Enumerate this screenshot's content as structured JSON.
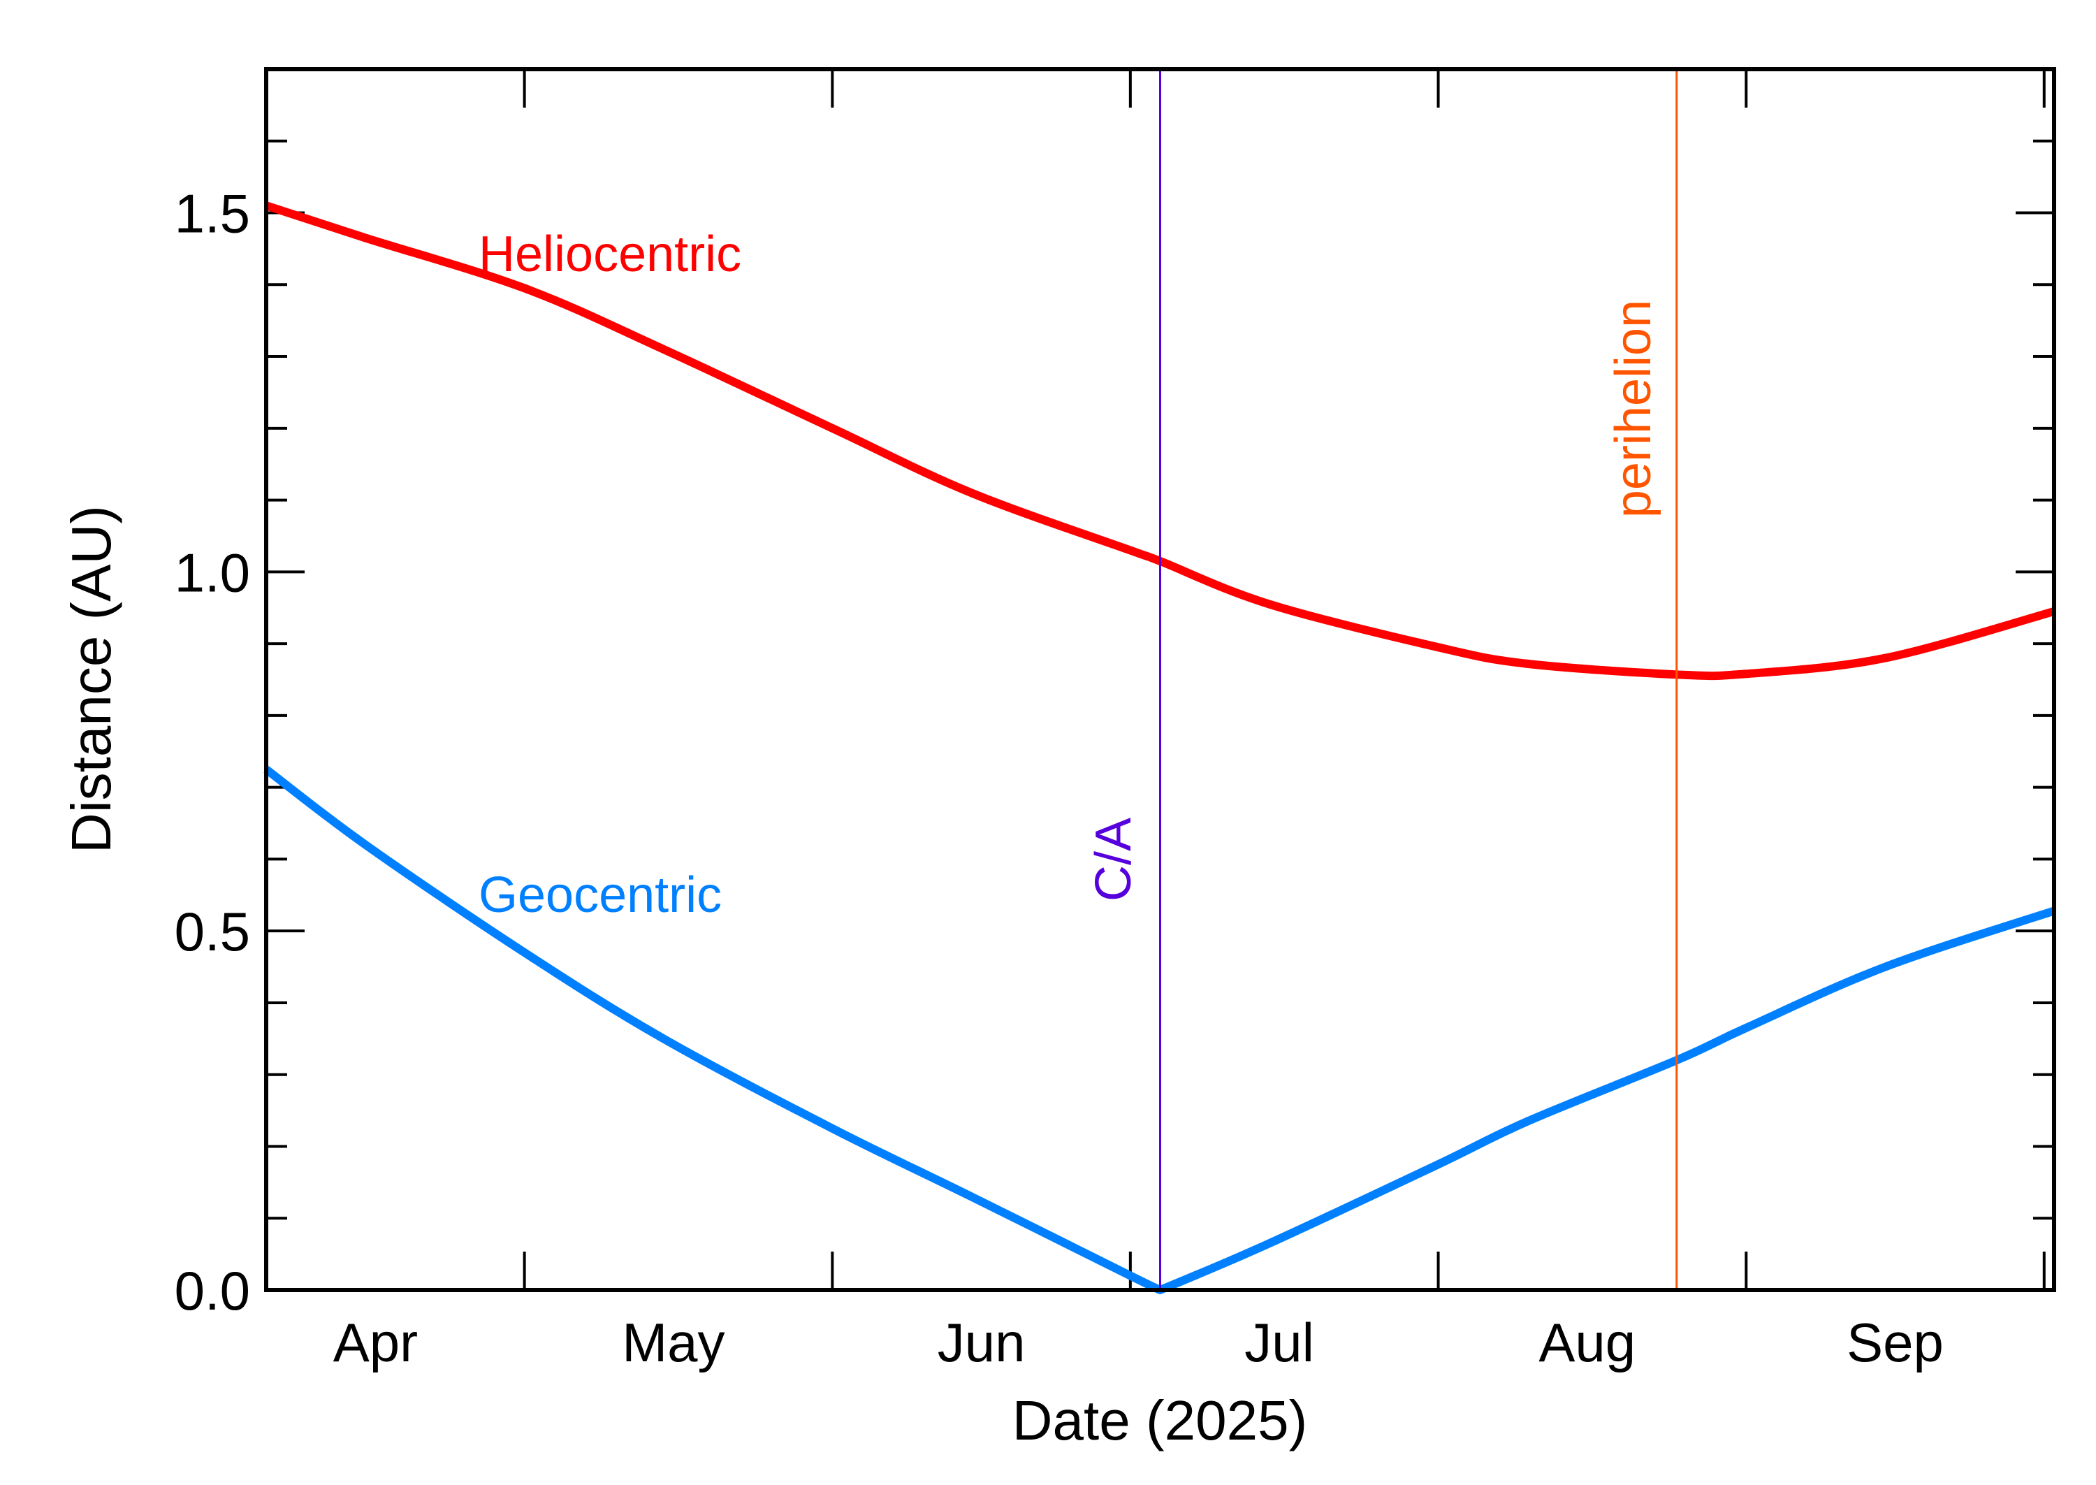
{
  "chart_data": {
    "type": "line",
    "title": "",
    "xlabel": "Date (2025)",
    "ylabel": "Distance (AU)",
    "xlim": [
      "2025-04-05",
      "2025-10-02"
    ],
    "ylim": [
      0,
      1.7
    ],
    "x_tick_labels": [
      {
        "label": "Apr",
        "date": "2025-04-16"
      },
      {
        "label": "May",
        "date": "2025-05-16"
      },
      {
        "label": "Jun",
        "date": "2025-06-16"
      },
      {
        "label": "Jul",
        "date": "2025-07-16"
      },
      {
        "label": "Aug",
        "date": "2025-08-16"
      },
      {
        "label": "Sep",
        "date": "2025-09-16"
      }
    ],
    "x_major_ticks": [
      "2025-05-01",
      "2025-06-01",
      "2025-07-01",
      "2025-08-01",
      "2025-09-01",
      "2025-10-01"
    ],
    "y_ticks": [
      {
        "label": "0.0",
        "value": 0
      },
      {
        "label": "0.5",
        "value": 0.5
      },
      {
        "label": "1.0",
        "value": 1.0
      },
      {
        "label": "1.5",
        "value": 1.5
      }
    ],
    "y_minor_step": 0.1,
    "grid": false,
    "series": [
      {
        "name": "Heliocentric",
        "color": "#ff0000",
        "points": [
          [
            "2025-04-05",
            1.51
          ],
          [
            "2025-04-15",
            1.465
          ],
          [
            "2025-05-01",
            1.395
          ],
          [
            "2025-05-15",
            1.31
          ],
          [
            "2025-06-01",
            1.2
          ],
          [
            "2025-06-15",
            1.11
          ],
          [
            "2025-07-01",
            1.03
          ],
          [
            "2025-07-04",
            1.015
          ],
          [
            "2025-07-15",
            0.955
          ],
          [
            "2025-08-01",
            0.895
          ],
          [
            "2025-08-10",
            0.872
          ],
          [
            "2025-08-25",
            0.857
          ],
          [
            "2025-09-01",
            0.858
          ],
          [
            "2025-09-15",
            0.88
          ],
          [
            "2025-10-02",
            0.945
          ]
        ]
      },
      {
        "name": "Geocentric",
        "color": "#0080ff",
        "points": [
          [
            "2025-04-05",
            0.725
          ],
          [
            "2025-04-15",
            0.62
          ],
          [
            "2025-05-01",
            0.47
          ],
          [
            "2025-05-15",
            0.35
          ],
          [
            "2025-06-01",
            0.225
          ],
          [
            "2025-06-15",
            0.13
          ],
          [
            "2025-07-01",
            0.02
          ],
          [
            "2025-07-04",
            0.0
          ],
          [
            "2025-07-15",
            0.065
          ],
          [
            "2025-08-01",
            0.175
          ],
          [
            "2025-08-10",
            0.235
          ],
          [
            "2025-08-25",
            0.32
          ],
          [
            "2025-09-01",
            0.365
          ],
          [
            "2025-09-15",
            0.45
          ],
          [
            "2025-10-02",
            0.528
          ]
        ]
      }
    ],
    "annotations": [
      {
        "label": "C/A",
        "date": "2025-07-04",
        "color": "#5500dd"
      },
      {
        "label": "perihelion",
        "date": "2025-08-25",
        "color": "#ff5500"
      }
    ]
  }
}
